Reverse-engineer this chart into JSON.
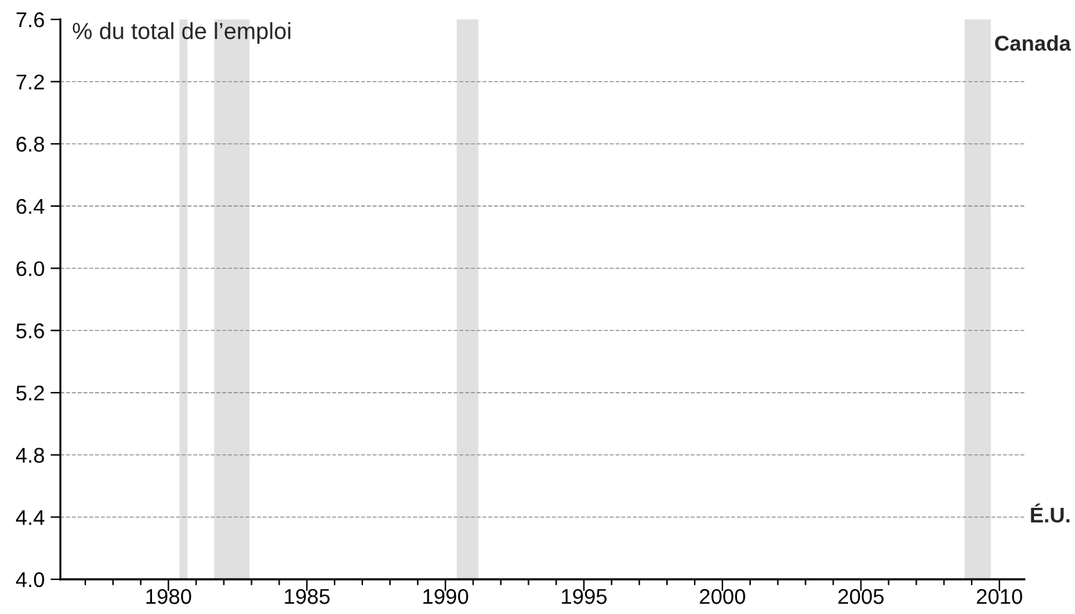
{
  "chart_data": {
    "type": "line",
    "ylabel": "% du total de l’emploi",
    "xlim": [
      1976.1,
      2010.9
    ],
    "xticks": [
      {
        "value": 1977,
        "label": null
      },
      {
        "value": 1978,
        "label": null
      },
      {
        "value": 1979,
        "label": null
      },
      1980,
      {
        "value": 1981,
        "label": null
      },
      {
        "value": 1982,
        "label": null
      },
      {
        "value": 1983,
        "label": null
      },
      {
        "value": 1984,
        "label": null
      },
      1985,
      {
        "value": 1986,
        "label": null
      },
      {
        "value": 1987,
        "label": null
      },
      {
        "value": 1988,
        "label": null
      },
      {
        "value": 1989,
        "label": null
      },
      1990,
      {
        "value": 1991,
        "label": null
      },
      {
        "value": 1992,
        "label": null
      },
      {
        "value": 1993,
        "label": null
      },
      {
        "value": 1994,
        "label": null
      },
      1995,
      {
        "value": 1996,
        "label": null
      },
      {
        "value": 1997,
        "label": null
      },
      {
        "value": 1998,
        "label": null
      },
      {
        "value": 1999,
        "label": null
      },
      2000,
      {
        "value": 2001,
        "label": null
      },
      {
        "value": 2002,
        "label": null
      },
      {
        "value": 2003,
        "label": null
      },
      {
        "value": 2004,
        "label": null
      },
      2005,
      {
        "value": 2006,
        "label": null
      },
      {
        "value": 2007,
        "label": null
      },
      {
        "value": 2008,
        "label": null
      },
      {
        "value": 2009,
        "label": null
      },
      2010
    ],
    "ylim": [
      4.0,
      7.6
    ],
    "yticks": [
      {
        "value": 4.0,
        "label": "4.0"
      },
      4.4,
      4.8,
      5.2,
      5.6,
      {
        "value": 6.0,
        "label": "6.0"
      },
      6.4,
      6.8,
      7.2,
      7.6
    ],
    "grid": "y",
    "bands": [
      {
        "axis": "x",
        "from": 1980.4,
        "to": 1980.69,
        "color": "#e0e0e0"
      },
      {
        "axis": "x",
        "from": 1981.65,
        "to": 1982.93,
        "color": "#e0e0e0"
      },
      {
        "axis": "x",
        "from": 1990.41,
        "to": 1991.19,
        "color": "#e0e0e0"
      },
      {
        "axis": "x",
        "from": 2008.74,
        "to": 2009.69,
        "color": "#e0e0e0"
      }
    ],
    "annotations": [
      "Canada",
      "É.U."
    ]
  }
}
